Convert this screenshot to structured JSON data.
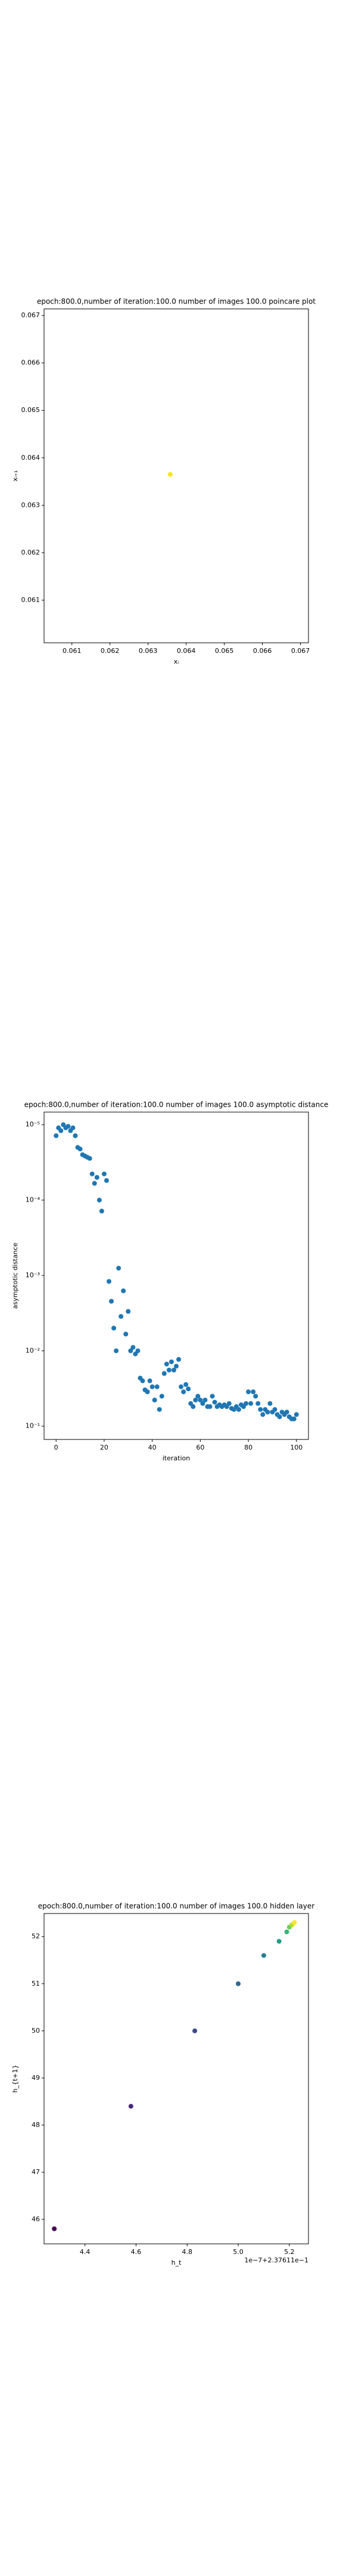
{
  "chart_data": [
    {
      "type": "scatter",
      "title": "epoch:800.0,number of iteration:100.0 number of images 100.0 poincare plot",
      "xlabel": "xᵢ",
      "ylabel": "xᵢ₊₁",
      "x": [
        0.06358
      ],
      "values": [
        0.06365
      ],
      "color": "#f5e51f",
      "xlim": [
        0.06027,
        0.06721
      ],
      "ylim": [
        0.0601,
        0.06714
      ],
      "xticks": [
        0.061,
        0.062,
        0.063,
        0.064,
        0.065,
        0.066,
        0.067
      ],
      "yticks": [
        0.061,
        0.062,
        0.063,
        0.064,
        0.065,
        0.066,
        0.067
      ]
    },
    {
      "type": "scatter",
      "title": "epoch:800.0,number of iteration:100.0  number of images 100.0 asymptotic distance",
      "xlabel": "iteration",
      "ylabel": "asymptotic distance",
      "ylog": true,
      "color": "#1f77b4",
      "x": [
        0,
        1,
        2,
        3,
        4,
        5,
        6,
        7,
        8,
        9,
        10,
        11,
        12,
        13,
        14,
        15,
        16,
        17,
        18,
        19,
        20,
        21,
        22,
        23,
        24,
        25,
        26,
        27,
        28,
        29,
        30,
        31,
        32,
        33,
        34,
        35,
        36,
        37,
        38,
        39,
        40,
        41,
        42,
        43,
        44,
        45,
        46,
        47,
        48,
        49,
        50,
        51,
        52,
        53,
        54,
        55,
        56,
        57,
        58,
        59,
        60,
        61,
        62,
        63,
        64,
        65,
        66,
        67,
        68,
        69,
        70,
        71,
        72,
        73,
        74,
        75,
        76,
        77,
        78,
        79,
        80,
        81,
        82,
        83,
        84,
        85,
        86,
        87,
        88,
        89,
        90,
        91,
        92,
        93,
        94,
        95,
        96,
        97,
        98,
        99,
        100
      ],
      "values": [
        1.4e-05,
        1.1e-05,
        1.2e-05,
        1e-05,
        1.1e-05,
        1.05e-05,
        1.2e-05,
        1.1e-05,
        1.4e-05,
        2e-05,
        2.1e-05,
        2.5e-05,
        2.6e-05,
        2.7e-05,
        2.8e-05,
        4.5e-05,
        6e-05,
        5e-05,
        0.0001,
        0.00014,
        4.5e-05,
        5.5e-05,
        0.0012,
        0.0022,
        0.005,
        0.01,
        0.0008,
        0.0035,
        0.0016,
        0.006,
        0.003,
        0.01,
        0.009,
        0.011,
        0.01,
        0.023,
        0.025,
        0.033,
        0.035,
        0.025,
        0.03,
        0.045,
        0.03,
        0.06,
        0.04,
        0.02,
        0.015,
        0.018,
        0.014,
        0.018,
        0.016,
        0.013,
        0.03,
        0.035,
        0.028,
        0.032,
        0.05,
        0.055,
        0.045,
        0.04,
        0.045,
        0.05,
        0.045,
        0.055,
        0.055,
        0.04,
        0.048,
        0.055,
        0.052,
        0.055,
        0.052,
        0.055,
        0.05,
        0.058,
        0.06,
        0.055,
        0.06,
        0.052,
        0.055,
        0.05,
        0.035,
        0.05,
        0.035,
        0.04,
        0.05,
        0.06,
        0.07,
        0.06,
        0.065,
        0.05,
        0.065,
        0.06,
        0.07,
        0.075,
        0.065,
        0.07,
        0.065,
        0.075,
        0.08,
        0.08,
        0.07
      ],
      "xlim": [
        -5,
        105
      ],
      "ylim": [
        0.15,
        6.8e-06
      ],
      "xticks": [
        0,
        20,
        40,
        60,
        80,
        100
      ],
      "yticks": [
        {
          "value": 0.1,
          "label": "10⁻¹"
        },
        {
          "value": 0.01,
          "label": "10⁻²"
        },
        {
          "value": 0.001,
          "label": "10⁻³"
        },
        {
          "value": 0.0001,
          "label": "10⁻⁴"
        },
        {
          "value": 1e-05,
          "label": "10⁻⁵"
        }
      ]
    },
    {
      "type": "scatter",
      "title": "epoch:800.0,number of iteration:100.0  number of images 100.0 hidden layer",
      "xlabel": "h_t",
      "ylabel": "h_{t+1}",
      "annotation": "1e−7+2.37611e−1",
      "x": [
        4.28,
        4.58,
        4.83,
        5.0,
        5.1,
        5.16,
        5.19,
        5.2,
        5.21,
        5.22
      ],
      "values": [
        45.8,
        48.4,
        50.0,
        51.0,
        51.6,
        51.9,
        52.1,
        52.2,
        52.25,
        52.3
      ],
      "colors": [
        "#440154",
        "#482878",
        "#3e4989",
        "#31688e",
        "#26828e",
        "#1f9e89",
        "#35b779",
        "#6ece58",
        "#b5de2b",
        "#fde725"
      ],
      "xlim": [
        4.24,
        5.275
      ],
      "ylim": [
        45.48,
        52.49
      ],
      "xticks": [
        4.4,
        4.6,
        4.8,
        {
          "value": 5,
          "label": "5.0"
        },
        5.2
      ],
      "yticks": [
        46,
        47,
        48,
        49,
        50,
        51,
        52
      ]
    }
  ]
}
